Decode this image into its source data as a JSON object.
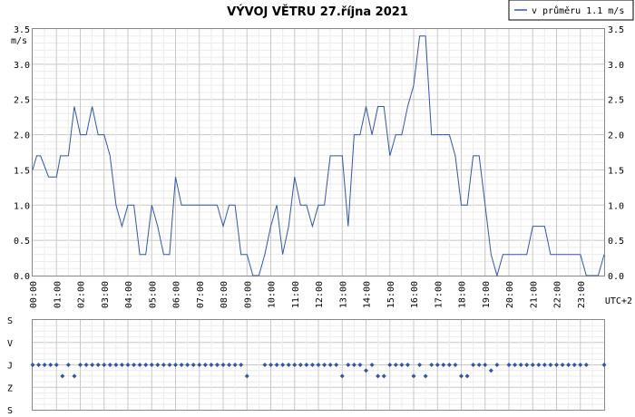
{
  "chart_data": [
    {
      "type": "line",
      "title": "VÝVOJ VĚTRU  27.října 2021",
      "ylabel": "m/s",
      "xlabel": "UTC+2",
      "legend": {
        "label": "v průměru 1.1 m/s",
        "placement": "top-right",
        "color": "#3355aa"
      },
      "y_ticks": [
        "0.0",
        "0.5",
        "1.0",
        "1.5",
        "2.0",
        "2.5",
        "3.0",
        "3.5"
      ],
      "x_ticks": [
        "00:00",
        "01:00",
        "02:00",
        "03:00",
        "04:00",
        "05:00",
        "06:00",
        "07:00",
        "08:00",
        "09:00",
        "10:00",
        "11:00",
        "12:00",
        "13:00",
        "14:00",
        "15:00",
        "16:00",
        "17:00",
        "18:00",
        "19:00",
        "20:00",
        "21:00",
        "22:00",
        "23:00"
      ],
      "ylim": [
        0,
        3.5
      ],
      "xlim": [
        0,
        24
      ],
      "grid": true,
      "series": [
        {
          "color": "#3355aa",
          "points": [
            [
              0.0,
              1.5
            ],
            [
              0.17,
              1.7
            ],
            [
              0.33,
              1.7
            ],
            [
              0.67,
              1.4
            ],
            [
              0.83,
              1.4
            ],
            [
              1.0,
              1.4
            ],
            [
              1.17,
              1.7
            ],
            [
              1.33,
              1.7
            ],
            [
              1.5,
              1.7
            ],
            [
              1.75,
              2.4
            ],
            [
              2.0,
              2.0
            ],
            [
              2.25,
              2.0
            ],
            [
              2.5,
              2.4
            ],
            [
              2.75,
              2.0
            ],
            [
              3.0,
              2.0
            ],
            [
              3.25,
              1.7
            ],
            [
              3.5,
              1.0
            ],
            [
              3.75,
              0.7
            ],
            [
              4.0,
              1.0
            ],
            [
              4.25,
              1.0
            ],
            [
              4.5,
              0.3
            ],
            [
              4.75,
              0.3
            ],
            [
              5.0,
              1.0
            ],
            [
              5.25,
              0.7
            ],
            [
              5.5,
              0.3
            ],
            [
              5.75,
              0.3
            ],
            [
              6.0,
              1.4
            ],
            [
              6.25,
              1.0
            ],
            [
              6.5,
              1.0
            ],
            [
              7.0,
              1.0
            ],
            [
              7.5,
              1.0
            ],
            [
              7.75,
              1.0
            ],
            [
              8.0,
              0.7
            ],
            [
              8.25,
              1.0
            ],
            [
              8.5,
              1.0
            ],
            [
              8.75,
              0.3
            ],
            [
              9.0,
              0.3
            ],
            [
              9.25,
              0.0
            ],
            [
              9.5,
              0.0
            ],
            [
              9.75,
              0.3
            ],
            [
              10.0,
              0.7
            ],
            [
              10.25,
              1.0
            ],
            [
              10.5,
              0.3
            ],
            [
              10.75,
              0.7
            ],
            [
              11.0,
              1.4
            ],
            [
              11.25,
              1.0
            ],
            [
              11.5,
              1.0
            ],
            [
              11.75,
              0.7
            ],
            [
              12.0,
              1.0
            ],
            [
              12.25,
              1.0
            ],
            [
              12.5,
              1.7
            ],
            [
              12.75,
              1.7
            ],
            [
              13.0,
              1.7
            ],
            [
              13.25,
              0.7
            ],
            [
              13.5,
              2.0
            ],
            [
              13.75,
              2.0
            ],
            [
              14.0,
              2.4
            ],
            [
              14.25,
              2.0
            ],
            [
              14.5,
              2.4
            ],
            [
              14.75,
              2.4
            ],
            [
              15.0,
              1.7
            ],
            [
              15.25,
              2.0
            ],
            [
              15.5,
              2.0
            ],
            [
              15.75,
              2.4
            ],
            [
              16.0,
              2.7
            ],
            [
              16.25,
              3.4
            ],
            [
              16.5,
              3.4
            ],
            [
              16.75,
              2.0
            ],
            [
              17.0,
              2.0
            ],
            [
              17.25,
              2.0
            ],
            [
              17.5,
              2.0
            ],
            [
              17.75,
              1.7
            ],
            [
              18.0,
              1.0
            ],
            [
              18.25,
              1.0
            ],
            [
              18.5,
              1.7
            ],
            [
              18.75,
              1.7
            ],
            [
              19.0,
              1.0
            ],
            [
              19.25,
              0.3
            ],
            [
              19.5,
              0.0
            ],
            [
              19.75,
              0.3
            ],
            [
              20.0,
              0.3
            ],
            [
              20.25,
              0.3
            ],
            [
              20.5,
              0.3
            ],
            [
              20.75,
              0.3
            ],
            [
              21.0,
              0.7
            ],
            [
              21.25,
              0.7
            ],
            [
              21.5,
              0.7
            ],
            [
              21.75,
              0.3
            ],
            [
              22.0,
              0.3
            ],
            [
              22.5,
              0.3
            ],
            [
              23.0,
              0.3
            ],
            [
              23.25,
              0.0
            ],
            [
              23.5,
              0.0
            ],
            [
              23.75,
              0.0
            ],
            [
              24.0,
              0.3
            ]
          ]
        }
      ]
    },
    {
      "type": "scatter",
      "title": "",
      "y_ticks": [
        "S",
        "V",
        "J",
        "Z",
        "S"
      ],
      "ylim": [
        0,
        4
      ],
      "xlim": [
        0,
        24
      ],
      "grid": true,
      "series": [
        {
          "color": "#3355aa",
          "points": [
            [
              0.0,
              2
            ],
            [
              0.25,
              2
            ],
            [
              0.5,
              2
            ],
            [
              0.75,
              2
            ],
            [
              1.0,
              2
            ],
            [
              1.25,
              2.5
            ],
            [
              1.5,
              2
            ],
            [
              1.75,
              2.5
            ],
            [
              2.0,
              2
            ],
            [
              2.25,
              2
            ],
            [
              2.5,
              2
            ],
            [
              2.75,
              2
            ],
            [
              3.0,
              2
            ],
            [
              3.25,
              2
            ],
            [
              3.5,
              2
            ],
            [
              3.75,
              2
            ],
            [
              4.0,
              2
            ],
            [
              4.25,
              2
            ],
            [
              4.5,
              2
            ],
            [
              4.75,
              2
            ],
            [
              5.0,
              2
            ],
            [
              5.25,
              2
            ],
            [
              5.5,
              2
            ],
            [
              5.75,
              2
            ],
            [
              6.0,
              2
            ],
            [
              6.25,
              2
            ],
            [
              6.5,
              2
            ],
            [
              6.75,
              2
            ],
            [
              7.0,
              2
            ],
            [
              7.25,
              2
            ],
            [
              7.5,
              2
            ],
            [
              7.75,
              2
            ],
            [
              8.0,
              2
            ],
            [
              8.25,
              2
            ],
            [
              8.5,
              2
            ],
            [
              8.75,
              2
            ],
            [
              9.0,
              2.5
            ],
            [
              9.75,
              2
            ],
            [
              10.0,
              2
            ],
            [
              10.25,
              2
            ],
            [
              10.5,
              2
            ],
            [
              10.75,
              2
            ],
            [
              11.0,
              2
            ],
            [
              11.25,
              2
            ],
            [
              11.5,
              2
            ],
            [
              11.75,
              2
            ],
            [
              12.0,
              2
            ],
            [
              12.25,
              2
            ],
            [
              12.5,
              2
            ],
            [
              12.75,
              2
            ],
            [
              13.0,
              2.5
            ],
            [
              13.25,
              2
            ],
            [
              13.5,
              2
            ],
            [
              13.75,
              2
            ],
            [
              14.0,
              2.25
            ],
            [
              14.25,
              2
            ],
            [
              14.5,
              2.5
            ],
            [
              14.75,
              2.5
            ],
            [
              15.0,
              2
            ],
            [
              15.25,
              2
            ],
            [
              15.5,
              2
            ],
            [
              15.75,
              2
            ],
            [
              16.0,
              2.5
            ],
            [
              16.25,
              2
            ],
            [
              16.5,
              2.5
            ],
            [
              16.75,
              2
            ],
            [
              17.0,
              2
            ],
            [
              17.25,
              2
            ],
            [
              17.5,
              2
            ],
            [
              17.75,
              2
            ],
            [
              18.0,
              2.5
            ],
            [
              18.25,
              2.5
            ],
            [
              18.5,
              2
            ],
            [
              18.75,
              2
            ],
            [
              19.0,
              2
            ],
            [
              19.25,
              2.25
            ],
            [
              19.5,
              2
            ],
            [
              20.0,
              2
            ],
            [
              20.25,
              2
            ],
            [
              20.5,
              2
            ],
            [
              20.75,
              2
            ],
            [
              21.0,
              2
            ],
            [
              21.25,
              2
            ],
            [
              21.5,
              2
            ],
            [
              21.75,
              2
            ],
            [
              22.0,
              2
            ],
            [
              22.25,
              2
            ],
            [
              22.5,
              2
            ],
            [
              22.75,
              2
            ],
            [
              23.0,
              2
            ],
            [
              23.25,
              2
            ],
            [
              24.0,
              2
            ]
          ]
        }
      ]
    }
  ]
}
